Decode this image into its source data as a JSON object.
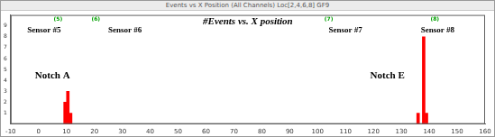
{
  "chart_data": {
    "type": "bar",
    "window_title": "Events vs X Position (All Channels) Loc[2,4,6,8] GF9",
    "title": "#Events vs. X position",
    "x": [
      9.5,
      10.5,
      11.5,
      136,
      138,
      139
    ],
    "values": [
      2,
      3,
      1,
      1,
      8,
      1
    ],
    "color": "#ff0000",
    "xlim": [
      -10,
      160
    ],
    "xticks": [
      -10,
      0,
      10,
      20,
      30,
      40,
      50,
      60,
      70,
      80,
      90,
      100,
      110,
      120,
      130,
      140,
      150,
      160
    ],
    "ylim": [
      0,
      10
    ],
    "yticks": [
      1,
      2,
      3,
      4,
      5,
      6,
      7,
      8,
      9
    ],
    "grid": false,
    "sensor_markers": [
      {
        "text": "(5)",
        "x": 7,
        "y": 9.6,
        "color": "#00a000"
      },
      {
        "text": "(6)",
        "x": 20.5,
        "y": 9.6,
        "color": "#00a000"
      },
      {
        "text": "(7)",
        "x": 104,
        "y": 9.6,
        "color": "#00a000"
      },
      {
        "text": "(8)",
        "x": 142,
        "y": 9.6,
        "color": "#00a000"
      }
    ],
    "sensor_labels": [
      {
        "text": "Sensor #5",
        "x": 2,
        "y": 8.6
      },
      {
        "text": "Sensor #6",
        "x": 31,
        "y": 8.6
      },
      {
        "text": "Sensor #7",
        "x": 110,
        "y": 8.6
      },
      {
        "text": "Sensor #8",
        "x": 143,
        "y": 8.6
      }
    ],
    "notes": [
      {
        "text": "Notch A",
        "x": 5,
        "y": 4.4
      },
      {
        "text": "Notch E",
        "x": 125,
        "y": 4.4
      }
    ]
  }
}
